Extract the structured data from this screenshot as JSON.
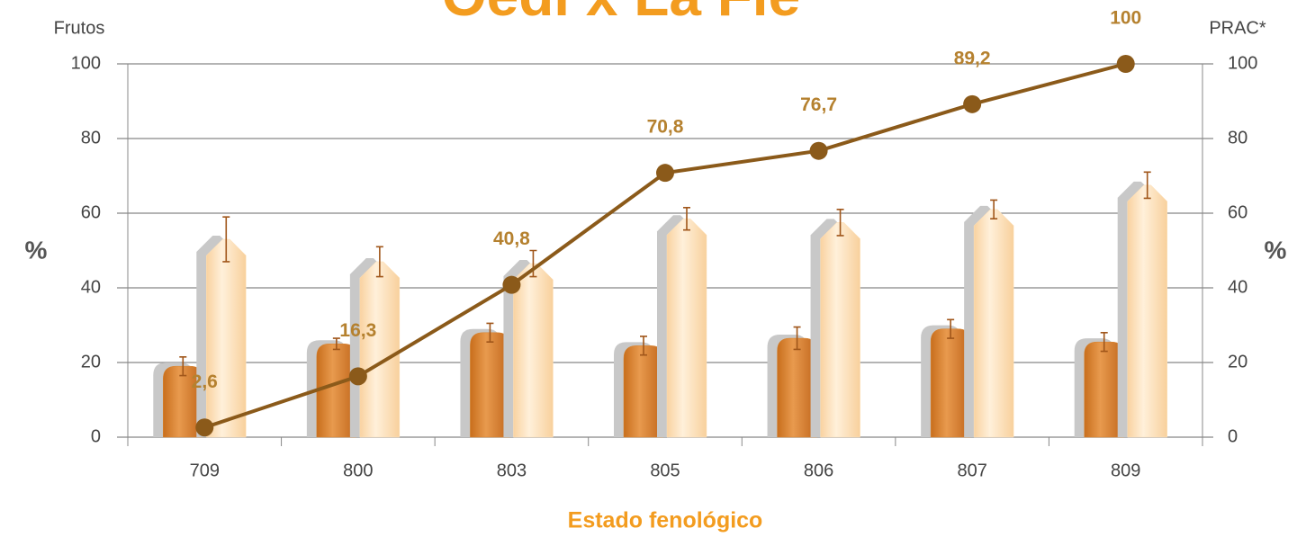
{
  "chart_data": {
    "type": "bar",
    "title": "Oedi x La Fle",
    "y_label_top": "Frutos",
    "y_label": "%",
    "y2_label_top": "PRAC*",
    "y2_label": "%",
    "x_label": "Estado fenológico",
    "categories": [
      "709",
      "800",
      "803",
      "805",
      "806",
      "807",
      "809"
    ],
    "series": [
      {
        "type": "bar",
        "color": "#d9822b",
        "values": [
          19,
          25,
          28,
          24.5,
          26.5,
          29,
          25.5
        ],
        "errors": [
          2.5,
          1.5,
          2.5,
          2.5,
          3,
          2.5,
          2.5
        ]
      },
      {
        "type": "bar",
        "color": "#fde0b8",
        "values": [
          53,
          47,
          46.5,
          58.5,
          57.5,
          61,
          67.5
        ],
        "errors": [
          6,
          4,
          3.5,
          3,
          3.5,
          2.5,
          3.5
        ]
      },
      {
        "type": "line",
        "axis": "y2",
        "color": "#8b5a1a",
        "values": [
          2.6,
          16.3,
          40.8,
          70.8,
          76.7,
          89.2,
          100
        ],
        "value_labels": [
          "2,6",
          "16,3",
          "40,8",
          "70,8",
          "76,7",
          "89,2",
          "100"
        ]
      }
    ],
    "ylim": [
      0,
      100
    ],
    "yticks": [
      0,
      20,
      40,
      60,
      80,
      100
    ],
    "y2lim": [
      0,
      100
    ],
    "y2ticks": [
      0,
      20,
      40,
      60,
      80,
      100
    ],
    "grid": true
  }
}
